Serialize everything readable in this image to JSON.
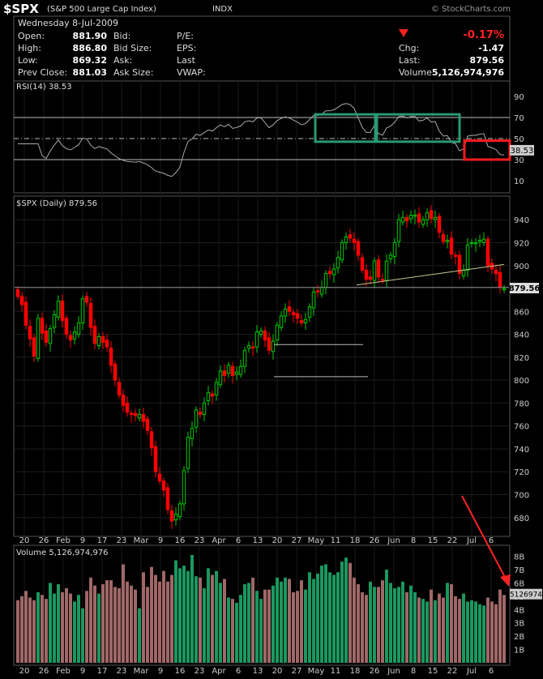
{
  "header": {
    "symbol": "$SPX",
    "name": "(S&P 500 Large Cap Index)",
    "exchange": "INDX",
    "copyright": "© StockCharts.com",
    "date": "Wednesday 8-Jul-2009",
    "change_pct": "-0.17%",
    "quote_left": [
      {
        "label": "Open:",
        "value": "881.90"
      },
      {
        "label": "High:",
        "value": "886.80"
      },
      {
        "label": "Low:",
        "value": "869.32"
      },
      {
        "label": "Prev Close:",
        "value": "881.03"
      }
    ],
    "quote_mid": [
      "Bid:",
      "Bid Size:",
      "Ask:",
      "Ask Size:"
    ],
    "quote_mid2": [
      "P/E:",
      "EPS:",
      "Last",
      "VWAP:"
    ],
    "quote_right": [
      {
        "label": "Chg:",
        "value": "-1.47"
      },
      {
        "label": "Last:",
        "value": "879.56"
      },
      {
        "label": "Volume:",
        "value": "5,126,974,976"
      }
    ]
  },
  "rsi": {
    "label": "RSI(14) 38.53",
    "value_badge": "38.53",
    "ticks": [
      "90",
      "70",
      "50",
      "30",
      "10"
    ]
  },
  "price": {
    "label": "$SPX (Daily) 879.56",
    "last_badge": "879.56",
    "ticks": [
      "940",
      "920",
      "900",
      "880",
      "860",
      "840",
      "820",
      "800",
      "780",
      "760",
      "740",
      "720",
      "700",
      "680"
    ]
  },
  "volume": {
    "label": "Volume 5,126,974,976",
    "badge": "5126974",
    "ticks": [
      "8B",
      "7B",
      "6B",
      "5B",
      "4B",
      "3B",
      "2B",
      "1B"
    ]
  },
  "x_labels": [
    "20",
    "26",
    "Feb",
    "9",
    "17",
    "23",
    "Mar",
    "9",
    "16",
    "23",
    "Apr",
    "6",
    "13",
    "20",
    "27",
    "May",
    "11",
    "18",
    "26",
    "Jun",
    "8",
    "15",
    "22",
    "Jul",
    "6"
  ],
  "colors": {
    "up": "#00cc00",
    "down": "#ff0000",
    "vol_up": "#1a9960",
    "vol_down": "#a06868",
    "rsi_line": "#aaaaaa",
    "box_green": "#2a9970",
    "box_red": "#ff1a1a"
  },
  "chart_data": {
    "type": "candlestick",
    "title": "$SPX (Daily) 879.56",
    "ylim": [
      665,
      955
    ],
    "closes": [
      873,
      866,
      848,
      836,
      821,
      854,
      841,
      833,
      845,
      857,
      869,
      852,
      840,
      835,
      842,
      850,
      871,
      868,
      846,
      832,
      838,
      833,
      829,
      813,
      800,
      787,
      778,
      772,
      770,
      769,
      770,
      764,
      756,
      741,
      720,
      712,
      704,
      687,
      677,
      683,
      692,
      721,
      750,
      758,
      774,
      770,
      780,
      789,
      786,
      798,
      808,
      804,
      813,
      804,
      807,
      812,
      826,
      830,
      828,
      842,
      843,
      835,
      826,
      834,
      848,
      856,
      862,
      860,
      857,
      854,
      850,
      853,
      864,
      877,
      877,
      881,
      893,
      893,
      897,
      907,
      920,
      925,
      924,
      920,
      909,
      896,
      888,
      888,
      904,
      890,
      887,
      904,
      909,
      920,
      940,
      942,
      939,
      944,
      944,
      938,
      940,
      946,
      941,
      942,
      929,
      921,
      922,
      910,
      908,
      893,
      896,
      918,
      920,
      920,
      922,
      923,
      900,
      897,
      893,
      881,
      880
    ],
    "volume_billions": [
      4.7,
      5.0,
      5.4,
      4.9,
      4.7,
      5.3,
      5.1,
      4.8,
      6.0,
      5.2,
      5.9,
      5.3,
      5.6,
      5.2,
      4.6,
      5.1,
      4.1,
      5.4,
      6.4,
      5.8,
      5.2,
      5.9,
      6.2,
      6.2,
      5.7,
      5.6,
      7.4,
      6.1,
      5.8,
      5.5,
      4.1,
      6.8,
      5.7,
      7.2,
      6.6,
      6.1,
      6.9,
      6.1,
      6.6,
      7.7,
      7.1,
      7.3,
      6.9,
      8.1,
      6.5,
      6.4,
      5.6,
      7.1,
      6.6,
      6.9,
      6.0,
      6.3,
      4.9,
      4.8,
      4.5,
      5.1,
      5.9,
      6.0,
      6.4,
      5.4,
      4.8,
      5.5,
      5.5,
      5.8,
      6.4,
      6.1,
      6.4,
      6.3,
      5.3,
      5.4,
      6.2,
      5.5,
      6.8,
      6.3,
      6.7,
      7.3,
      7.4,
      6.8,
      6.6,
      6.8,
      7.6,
      7.9,
      7.5,
      6.4,
      5.9,
      5.3,
      5.1,
      6.1,
      5.7,
      5.7,
      6.2,
      7.0,
      6.0,
      5.6,
      5.7,
      6.1,
      5.3,
      5.8,
      5.3,
      4.9,
      4.8,
      4.6,
      5.5,
      4.7,
      5.2,
      4.9,
      6.0,
      5.9,
      5.0,
      4.8,
      5.2,
      4.6,
      4.7,
      4.6,
      4.4,
      4.3,
      4.9,
      4.6,
      4.4,
      5.5,
      5.1
    ]
  }
}
